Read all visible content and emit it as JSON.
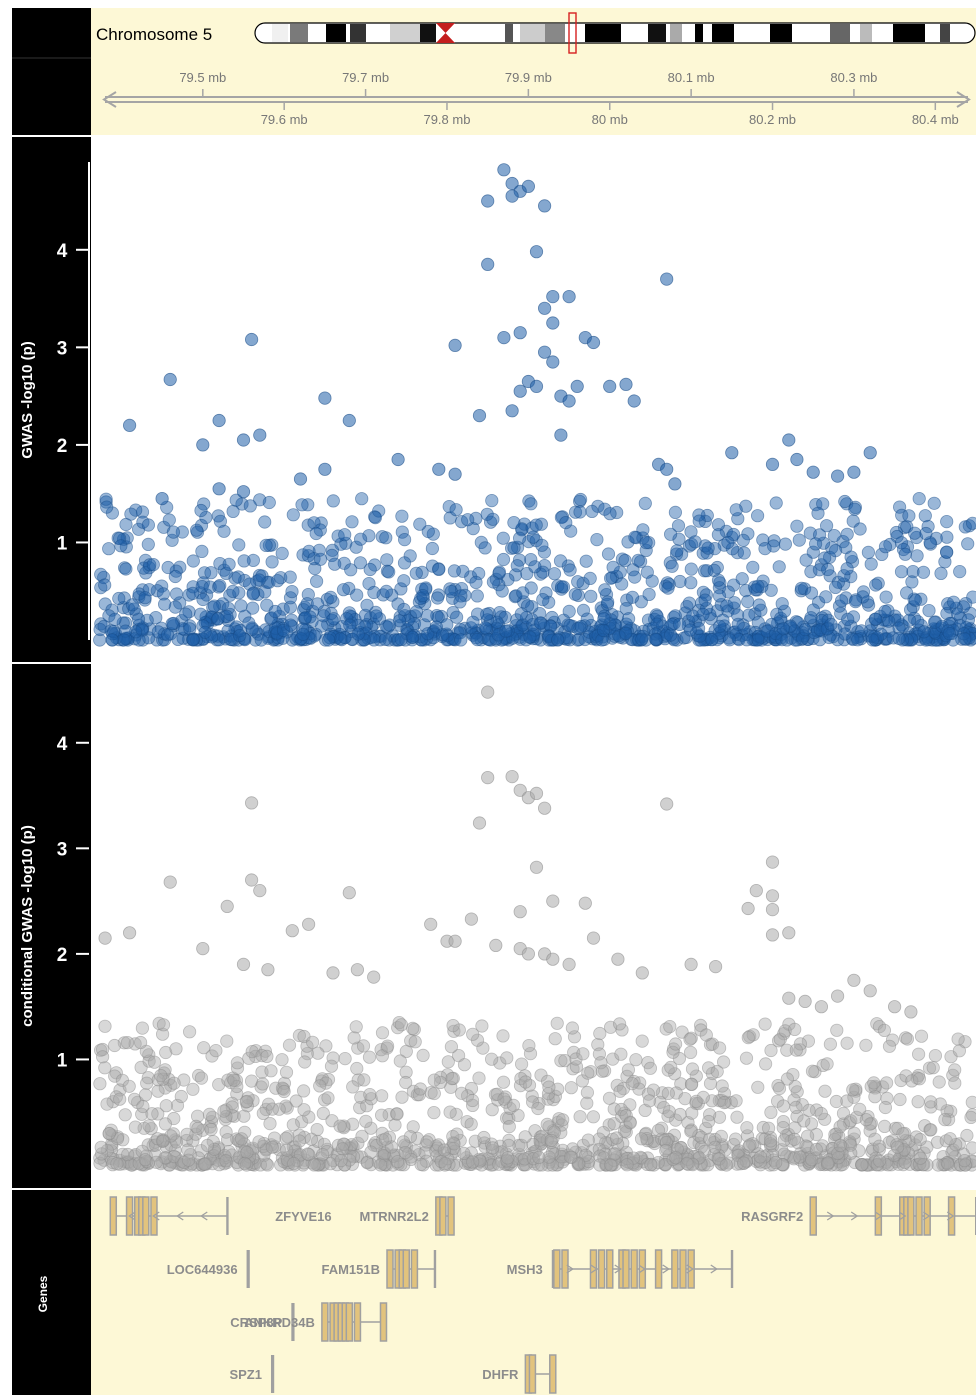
{
  "ideogram": {
    "label": "Chromosome 5",
    "highlight_center_mb": 79.95
  },
  "axis": {
    "x_range_mb": [
      79.37,
      80.45
    ],
    "ticks_top": [
      "79.5 mb",
      "79.7 mb",
      "79.9 mb",
      "80.1 mb",
      "80.3 mb"
    ],
    "ticks_top_values": [
      79.5,
      79.7,
      79.9,
      80.1,
      80.3
    ],
    "ticks_bottom": [
      "79.6 mb",
      "79.8 mb",
      "80 mb",
      "80.2 mb",
      "80.4 mb"
    ],
    "ticks_bottom_values": [
      79.6,
      79.8,
      80.0,
      80.2,
      80.4
    ]
  },
  "panels": {
    "gwas_label": "GWAS -log10 (p)",
    "cond_label": "conditional GWAS -log10 (p)",
    "genes_label": "Genes"
  },
  "colors": {
    "gwas_points": "#1f5fa8",
    "cond_points": "#a9a9a9",
    "track_bg": "#fdf8d6",
    "label_bar": "#000000",
    "gene_box": "#e2c37d"
  },
  "chart_data": [
    {
      "type": "scatter",
      "title": "",
      "xlabel": "",
      "ylabel": "GWAS -log10 (p)",
      "xlim": [
        79.37,
        80.45
      ],
      "ylim": [
        0,
        4.9
      ],
      "yticks": [
        1,
        2,
        3,
        4
      ],
      "series": [
        {
          "points": [
            [
              79.87,
              4.82
            ],
            [
              79.88,
              4.68
            ],
            [
              79.89,
              4.6
            ],
            [
              79.9,
              4.65
            ],
            [
              79.88,
              4.55
            ],
            [
              79.92,
              4.45
            ],
            [
              79.85,
              4.5
            ],
            [
              79.91,
              3.98
            ],
            [
              79.85,
              3.85
            ],
            [
              80.07,
              3.7
            ],
            [
              79.93,
              3.52
            ],
            [
              79.95,
              3.52
            ],
            [
              79.92,
              3.4
            ],
            [
              79.81,
              3.02
            ],
            [
              79.89,
              3.15
            ],
            [
              79.87,
              3.1
            ],
            [
              79.93,
              3.25
            ],
            [
              79.97,
              3.1
            ],
            [
              79.98,
              3.05
            ],
            [
              79.56,
              3.08
            ],
            [
              79.46,
              2.67
            ],
            [
              79.65,
              2.48
            ],
            [
              79.92,
              2.95
            ],
            [
              79.93,
              2.85
            ],
            [
              79.9,
              2.65
            ],
            [
              79.91,
              2.6
            ],
            [
              79.89,
              2.55
            ],
            [
              79.94,
              2.5
            ],
            [
              79.95,
              2.45
            ],
            [
              79.96,
              2.6
            ],
            [
              80.0,
              2.6
            ],
            [
              80.02,
              2.62
            ],
            [
              80.03,
              2.45
            ],
            [
              79.84,
              2.3
            ],
            [
              79.88,
              2.35
            ],
            [
              79.94,
              2.1
            ],
            [
              79.68,
              2.25
            ],
            [
              79.52,
              2.25
            ],
            [
              79.55,
              2.05
            ],
            [
              79.57,
              2.1
            ],
            [
              79.41,
              2.2
            ],
            [
              79.5,
              2.0
            ],
            [
              80.22,
              2.05
            ],
            [
              80.15,
              1.92
            ],
            [
              80.32,
              1.92
            ],
            [
              79.79,
              1.75
            ],
            [
              79.74,
              1.85
            ],
            [
              79.81,
              1.7
            ],
            [
              80.06,
              1.8
            ],
            [
              80.07,
              1.75
            ],
            [
              80.08,
              1.6
            ],
            [
              80.2,
              1.8
            ],
            [
              80.23,
              1.85
            ],
            [
              80.25,
              1.72
            ],
            [
              80.28,
              1.68
            ],
            [
              80.3,
              1.72
            ],
            [
              79.65,
              1.75
            ],
            [
              79.62,
              1.65
            ],
            [
              79.55,
              1.52
            ],
            [
              79.52,
              1.55
            ],
            [
              79.45,
              1.45
            ]
          ]
        }
      ]
    },
    {
      "type": "scatter",
      "title": "",
      "xlabel": "",
      "ylabel": "conditional GWAS -log10 (p)",
      "xlim": [
        79.37,
        80.45
      ],
      "ylim": [
        0,
        4.5
      ],
      "yticks": [
        1,
        2,
        3,
        4
      ],
      "series": [
        {
          "points": [
            [
              79.85,
              4.48
            ],
            [
              79.85,
              3.67
            ],
            [
              79.88,
              3.68
            ],
            [
              79.89,
              3.55
            ],
            [
              79.9,
              3.48
            ],
            [
              79.91,
              3.52
            ],
            [
              79.92,
              3.38
            ],
            [
              79.84,
              3.24
            ],
            [
              80.07,
              3.42
            ],
            [
              79.56,
              3.43
            ],
            [
              79.46,
              2.68
            ],
            [
              79.56,
              2.7
            ],
            [
              79.57,
              2.6
            ],
            [
              79.68,
              2.58
            ],
            [
              79.93,
              2.5
            ],
            [
              79.97,
              2.48
            ],
            [
              79.91,
              2.82
            ],
            [
              79.89,
              2.4
            ],
            [
              80.2,
              2.87
            ],
            [
              80.18,
              2.6
            ],
            [
              80.2,
              2.55
            ],
            [
              80.2,
              2.42
            ],
            [
              80.22,
              2.2
            ],
            [
              80.2,
              2.18
            ],
            [
              80.17,
              2.43
            ],
            [
              79.53,
              2.45
            ],
            [
              79.83,
              2.33
            ],
            [
              79.78,
              2.28
            ],
            [
              79.63,
              2.28
            ],
            [
              79.61,
              2.22
            ],
            [
              79.41,
              2.2
            ],
            [
              79.38,
              2.15
            ],
            [
              79.8,
              2.12
            ],
            [
              79.81,
              2.12
            ],
            [
              79.86,
              2.08
            ],
            [
              79.89,
              2.05
            ],
            [
              79.9,
              2.0
            ],
            [
              79.92,
              2.0
            ],
            [
              79.93,
              1.95
            ],
            [
              79.95,
              1.9
            ],
            [
              79.98,
              2.15
            ],
            [
              80.01,
              1.95
            ],
            [
              79.5,
              2.05
            ],
            [
              79.55,
              1.9
            ],
            [
              79.58,
              1.85
            ],
            [
              79.66,
              1.82
            ],
            [
              79.69,
              1.85
            ],
            [
              79.71,
              1.78
            ],
            [
              80.1,
              1.9
            ],
            [
              80.13,
              1.88
            ],
            [
              80.04,
              1.82
            ],
            [
              80.3,
              1.75
            ],
            [
              80.32,
              1.65
            ],
            [
              80.28,
              1.6
            ],
            [
              80.22,
              1.58
            ],
            [
              80.24,
              1.55
            ],
            [
              80.26,
              1.5
            ],
            [
              80.35,
              1.5
            ],
            [
              80.37,
              1.45
            ]
          ]
        }
      ]
    }
  ],
  "genes": [
    {
      "name": "ZFYVE16",
      "start": 79.39,
      "end": 79.53,
      "strand": "-",
      "exons": [
        79.39,
        79.41,
        79.42,
        79.425,
        79.43,
        79.44
      ]
    },
    {
      "name": "LOC644936",
      "start": 79.555,
      "end": 79.556,
      "strand": "",
      "exons": []
    },
    {
      "name": "CRSP8P",
      "start": 79.61,
      "end": 79.611,
      "strand": "",
      "exons": []
    },
    {
      "name": "SPZ1",
      "start": 79.585,
      "end": 79.586,
      "strand": "",
      "exons": []
    },
    {
      "name": "ANKRD34B",
      "start": 79.65,
      "end": 79.722,
      "strand": "",
      "exons": [
        79.65,
        79.66,
        79.665,
        79.67,
        79.675,
        79.68,
        79.69,
        79.722
      ]
    },
    {
      "name": "FAM151B",
      "start": 79.73,
      "end": 79.785,
      "strand": "",
      "exons": [
        79.73,
        79.74,
        79.745,
        79.75,
        79.76
      ]
    },
    {
      "name": "MTRNR2L2",
      "start": 79.79,
      "end": 79.805,
      "strand": "",
      "exons": [
        79.79,
        79.795,
        79.805
      ]
    },
    {
      "name": "DHFR",
      "start": 79.9,
      "end": 79.93,
      "strand": "",
      "exons": [
        79.9,
        79.905,
        79.93
      ]
    },
    {
      "name": "MSH3",
      "start": 79.93,
      "end": 80.15,
      "strand": "+",
      "exons": [
        79.935,
        79.945,
        79.98,
        79.99,
        80.0,
        80.015,
        80.02,
        80.03,
        80.04,
        80.06,
        80.08,
        80.09,
        80.1
      ]
    },
    {
      "name": "RASGRF2",
      "start": 80.25,
      "end": 80.45,
      "strand": "+",
      "exons": [
        80.25,
        80.33,
        80.36,
        80.365,
        80.37,
        80.38,
        80.39,
        80.42
      ]
    }
  ]
}
